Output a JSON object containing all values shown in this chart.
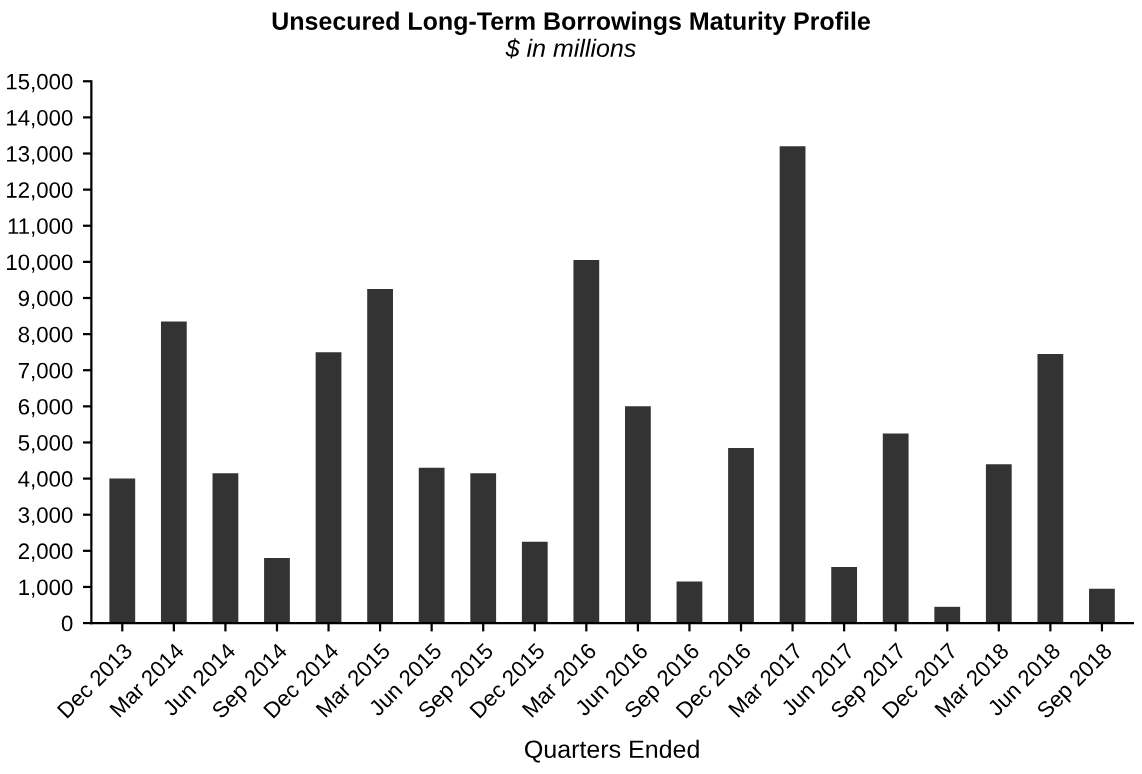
{
  "chart_data": {
    "type": "bar",
    "title": "Unsecured Long-Term Borrowings Maturity Profile",
    "subtitle": "$ in millions",
    "xlabel": "Quarters Ended",
    "categories": [
      "Dec 2013",
      "Mar 2014",
      "Jun 2014",
      "Sep 2014",
      "Dec 2014",
      "Mar 2015",
      "Jun 2015",
      "Sep 2015",
      "Dec 2015",
      "Mar 2016",
      "Jun 2016",
      "Sep 2016",
      "Dec 2016",
      "Mar 2017",
      "Jun 2017",
      "Sep 2017",
      "Dec 2017",
      "Mar 2018",
      "Jun 2018",
      "Sep 2018"
    ],
    "values": [
      4000,
      8350,
      4150,
      1800,
      7500,
      9250,
      4300,
      4150,
      2250,
      10050,
      6000,
      1150,
      4850,
      13200,
      1550,
      5250,
      450,
      4400,
      7450,
      950
    ],
    "color": "#333333",
    "ylim": [
      0,
      15000
    ],
    "yticks": [
      {
        "value": 0,
        "label": "0"
      },
      {
        "value": 1000,
        "label": "1,000"
      },
      {
        "value": 2000,
        "label": "2,000"
      },
      {
        "value": 3000,
        "label": "3,000"
      },
      {
        "value": 4000,
        "label": "4,000"
      },
      {
        "value": 5000,
        "label": "5,000"
      },
      {
        "value": 6000,
        "label": "6,000"
      },
      {
        "value": 7000,
        "label": "7,000"
      },
      {
        "value": 8000,
        "label": "8,000"
      },
      {
        "value": 9000,
        "label": "9,000"
      },
      {
        "value": 10000,
        "label": "10,000"
      },
      {
        "value": 11000,
        "label": "11,000"
      },
      {
        "value": 12000,
        "label": "12,000"
      },
      {
        "value": 13000,
        "label": "13,000"
      },
      {
        "value": 14000,
        "label": "14,000"
      },
      {
        "value": 15000,
        "label": "15,000"
      }
    ],
    "grid": false,
    "legend": false
  }
}
